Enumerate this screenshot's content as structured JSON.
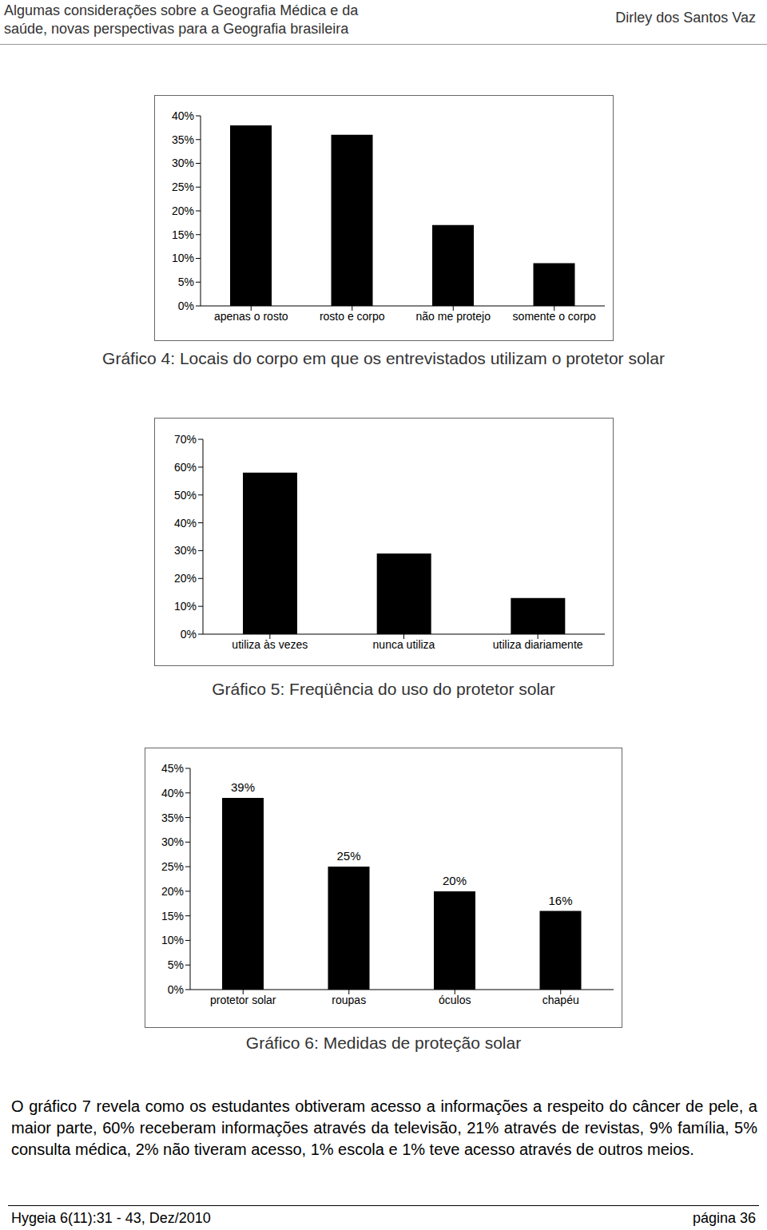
{
  "header": {
    "title_lines": [
      "Algumas considerações sobre a Geografia Médica e da",
      "saúde, novas perspectivas para a Geografia brasileira"
    ],
    "author": "Dirley dos Santos Vaz"
  },
  "chart_data": [
    {
      "type": "bar",
      "title": "Gráfico 4: Locais do corpo em que os entrevistados utilizam o protetor solar",
      "categories": [
        "apenas o rosto",
        "rosto e corpo",
        "não me protejo",
        "somente o corpo"
      ],
      "values": [
        38,
        36,
        17,
        9
      ],
      "color": "#000000",
      "ylim": [
        0,
        40
      ],
      "yticks": [
        {
          "value": 0,
          "label": "0%"
        },
        {
          "value": 5,
          "label": "5%"
        },
        {
          "value": 10,
          "label": "10%"
        },
        {
          "value": 15,
          "label": "15%"
        },
        {
          "value": 20,
          "label": "20%"
        },
        {
          "value": 25,
          "label": "25%"
        },
        {
          "value": 30,
          "label": "30%"
        },
        {
          "value": 35,
          "label": "35%"
        },
        {
          "value": 40,
          "label": "40%"
        }
      ],
      "grid": false
    },
    {
      "type": "bar",
      "title": "Gráfico 5: Freqüência do uso do protetor solar",
      "categories": [
        "utiliza às vezes",
        "nunca utiliza",
        "utiliza diariamente"
      ],
      "values": [
        58,
        29,
        13
      ],
      "color": "#000000",
      "ylim": [
        0,
        70
      ],
      "yticks": [
        {
          "value": 0,
          "label": "0%"
        },
        {
          "value": 10,
          "label": "10%"
        },
        {
          "value": 20,
          "label": "20%"
        },
        {
          "value": 30,
          "label": "30%"
        },
        {
          "value": 40,
          "label": "40%"
        },
        {
          "value": 50,
          "label": "50%"
        },
        {
          "value": 60,
          "label": "60%"
        },
        {
          "value": 70,
          "label": "70%"
        }
      ],
      "grid": false
    },
    {
      "type": "bar",
      "title": "Gráfico 6: Medidas de proteção solar",
      "categories": [
        "protetor solar",
        "roupas",
        "óculos",
        "chapéu"
      ],
      "values": [
        39,
        25,
        20,
        16
      ],
      "value_labels": [
        "39%",
        "25%",
        "20%",
        "16%"
      ],
      "data_labels": true,
      "color": "#000000",
      "ylim": [
        0,
        45
      ],
      "yticks": [
        {
          "value": 0,
          "label": "0%"
        },
        {
          "value": 5,
          "label": "5%"
        },
        {
          "value": 10,
          "label": "10%"
        },
        {
          "value": 15,
          "label": "15%"
        },
        {
          "value": 20,
          "label": "20%"
        },
        {
          "value": 25,
          "label": "25%"
        },
        {
          "value": 30,
          "label": "30%"
        },
        {
          "value": 35,
          "label": "35%"
        },
        {
          "value": 40,
          "label": "40%"
        },
        {
          "value": 45,
          "label": "45%"
        }
      ],
      "grid": false
    }
  ],
  "paragraph": "O gráfico 7 revela como os estudantes obtiveram acesso a informações a respeito do câncer de pele, a maior parte, 60% receberam informações através da televisão, 21% através de revistas, 9% família, 5% consulta médica, 2% não tiveram acesso, 1% escola e 1% teve acesso através de outros meios.",
  "footer": {
    "citation": "Hygeia 6(11):31 - 43, Dez/2010",
    "page": "página 36"
  }
}
